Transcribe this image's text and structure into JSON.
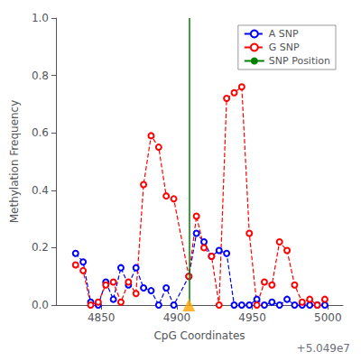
{
  "chart_data": {
    "type": "line",
    "xlabel": "CpG Coordinates",
    "ylabel": "Methylation Frequency",
    "x": [
      50494833,
      50494838,
      50494843,
      50494848,
      50494853,
      50494858,
      50494863,
      50494868,
      50494873,
      50494878,
      50494883,
      50494888,
      50494893,
      50494898,
      50494908,
      50494913,
      50494918,
      50494923,
      50494928,
      50494933,
      50494938,
      50494943,
      50494948,
      50494953,
      50494958,
      50494963,
      50494968,
      50494973,
      50494978,
      50494983,
      50494988,
      50494993,
      50494998
    ],
    "xlim": [
      50494820,
      50495010
    ],
    "xticks": [
      {
        "value": 50494850,
        "label": "4850"
      },
      {
        "value": 50494900,
        "label": "4900"
      },
      {
        "value": 50494950,
        "label": "4950"
      },
      {
        "value": 50495000,
        "label": "5000"
      }
    ],
    "ylim": [
      0,
      1.0
    ],
    "yticks": [
      {
        "value": 0.0,
        "label": "0.0"
      },
      0.2,
      0.4,
      0.6,
      0.8,
      {
        "value": 1.0,
        "label": "1.0"
      }
    ],
    "grid": false,
    "legend": "upper right",
    "series": [
      {
        "name": "A SNP",
        "color": "blue",
        "marker": "circle",
        "line_style": "dashed",
        "values": [
          0.18,
          0.15,
          0.01,
          0.0,
          0.08,
          0.02,
          0.13,
          0.07,
          0.13,
          0.06,
          0.05,
          0.0,
          0.06,
          0.0,
          0.1,
          0.25,
          0.22,
          0.17,
          0.19,
          0.18,
          0.0,
          0.0,
          0.0,
          0.02,
          0.0,
          0.01,
          0.0,
          0.02,
          0.0,
          0.0,
          0.0,
          0.0,
          0.0
        ]
      },
      {
        "name": "G SNP",
        "color": "red",
        "marker": "circle",
        "line_style": "dashed",
        "values": [
          0.14,
          0.12,
          0.0,
          0.01,
          0.07,
          0.08,
          0.01,
          0.08,
          0.04,
          0.42,
          0.59,
          0.55,
          0.38,
          0.37,
          0.1,
          0.31,
          0.2,
          0.17,
          0.0,
          0.72,
          0.74,
          0.76,
          0.25,
          0.0,
          0.08,
          0.07,
          0.22,
          0.19,
          0.07,
          0.01,
          0.02,
          0.0,
          0.02
        ]
      },
      {
        "name": "SNP Position",
        "type": "vline",
        "color": "green",
        "line_style": "solid",
        "x": 50494908
      },
      {
        "type": "scatter",
        "marker": "triangle",
        "color": "orange",
        "x": [
          50494908
        ],
        "values": [
          0.0
        ]
      }
    ],
    "annotations": [
      {
        "text": "+5.049e7"
      }
    ]
  }
}
